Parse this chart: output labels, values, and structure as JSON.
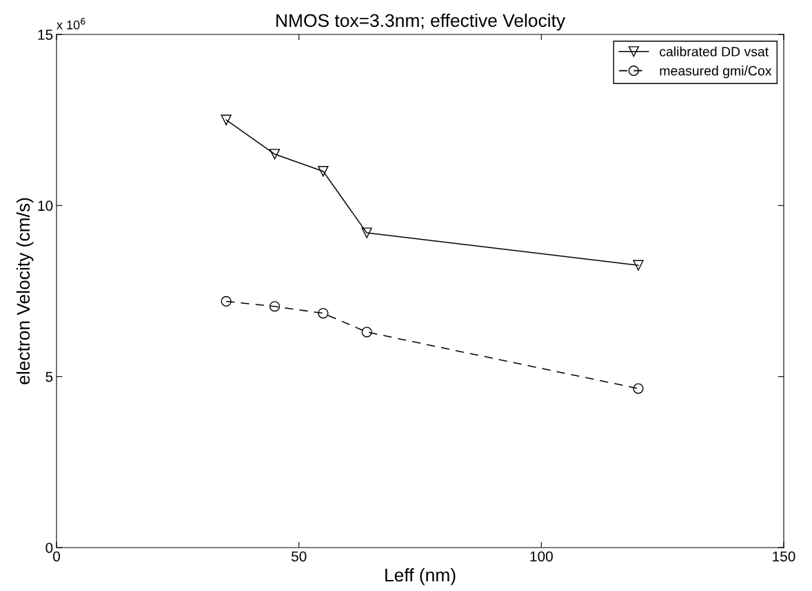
{
  "chart_data": {
    "type": "line",
    "title": "NMOS tox=3.3nm; effective Velocity",
    "xlabel": "Leff (nm)",
    "ylabel": "electron Velocity (cm/s)",
    "annotations": [
      "x 10$^{6}$"
    ],
    "x": [
      35,
      45,
      55,
      64,
      120
    ],
    "series": [
      {
        "name": "calibrated DD vsat",
        "color": "#000000",
        "marker": "triangle",
        "line_style": "solid",
        "values": [
          12.5,
          11.5,
          11.0,
          9.2,
          8.25
        ]
      },
      {
        "name": "measured gmi/Cox",
        "color": "#000000",
        "marker": "circle",
        "line_style": "dashed",
        "values": [
          7.2,
          7.05,
          6.85,
          6.3,
          4.65
        ]
      }
    ],
    "xlim": [
      0,
      150
    ],
    "xticks": [
      0,
      50,
      100,
      150
    ],
    "ylim": [
      0,
      15
    ],
    "yticks": [
      0,
      5,
      10,
      15
    ],
    "grid": false,
    "legend": "top right"
  }
}
